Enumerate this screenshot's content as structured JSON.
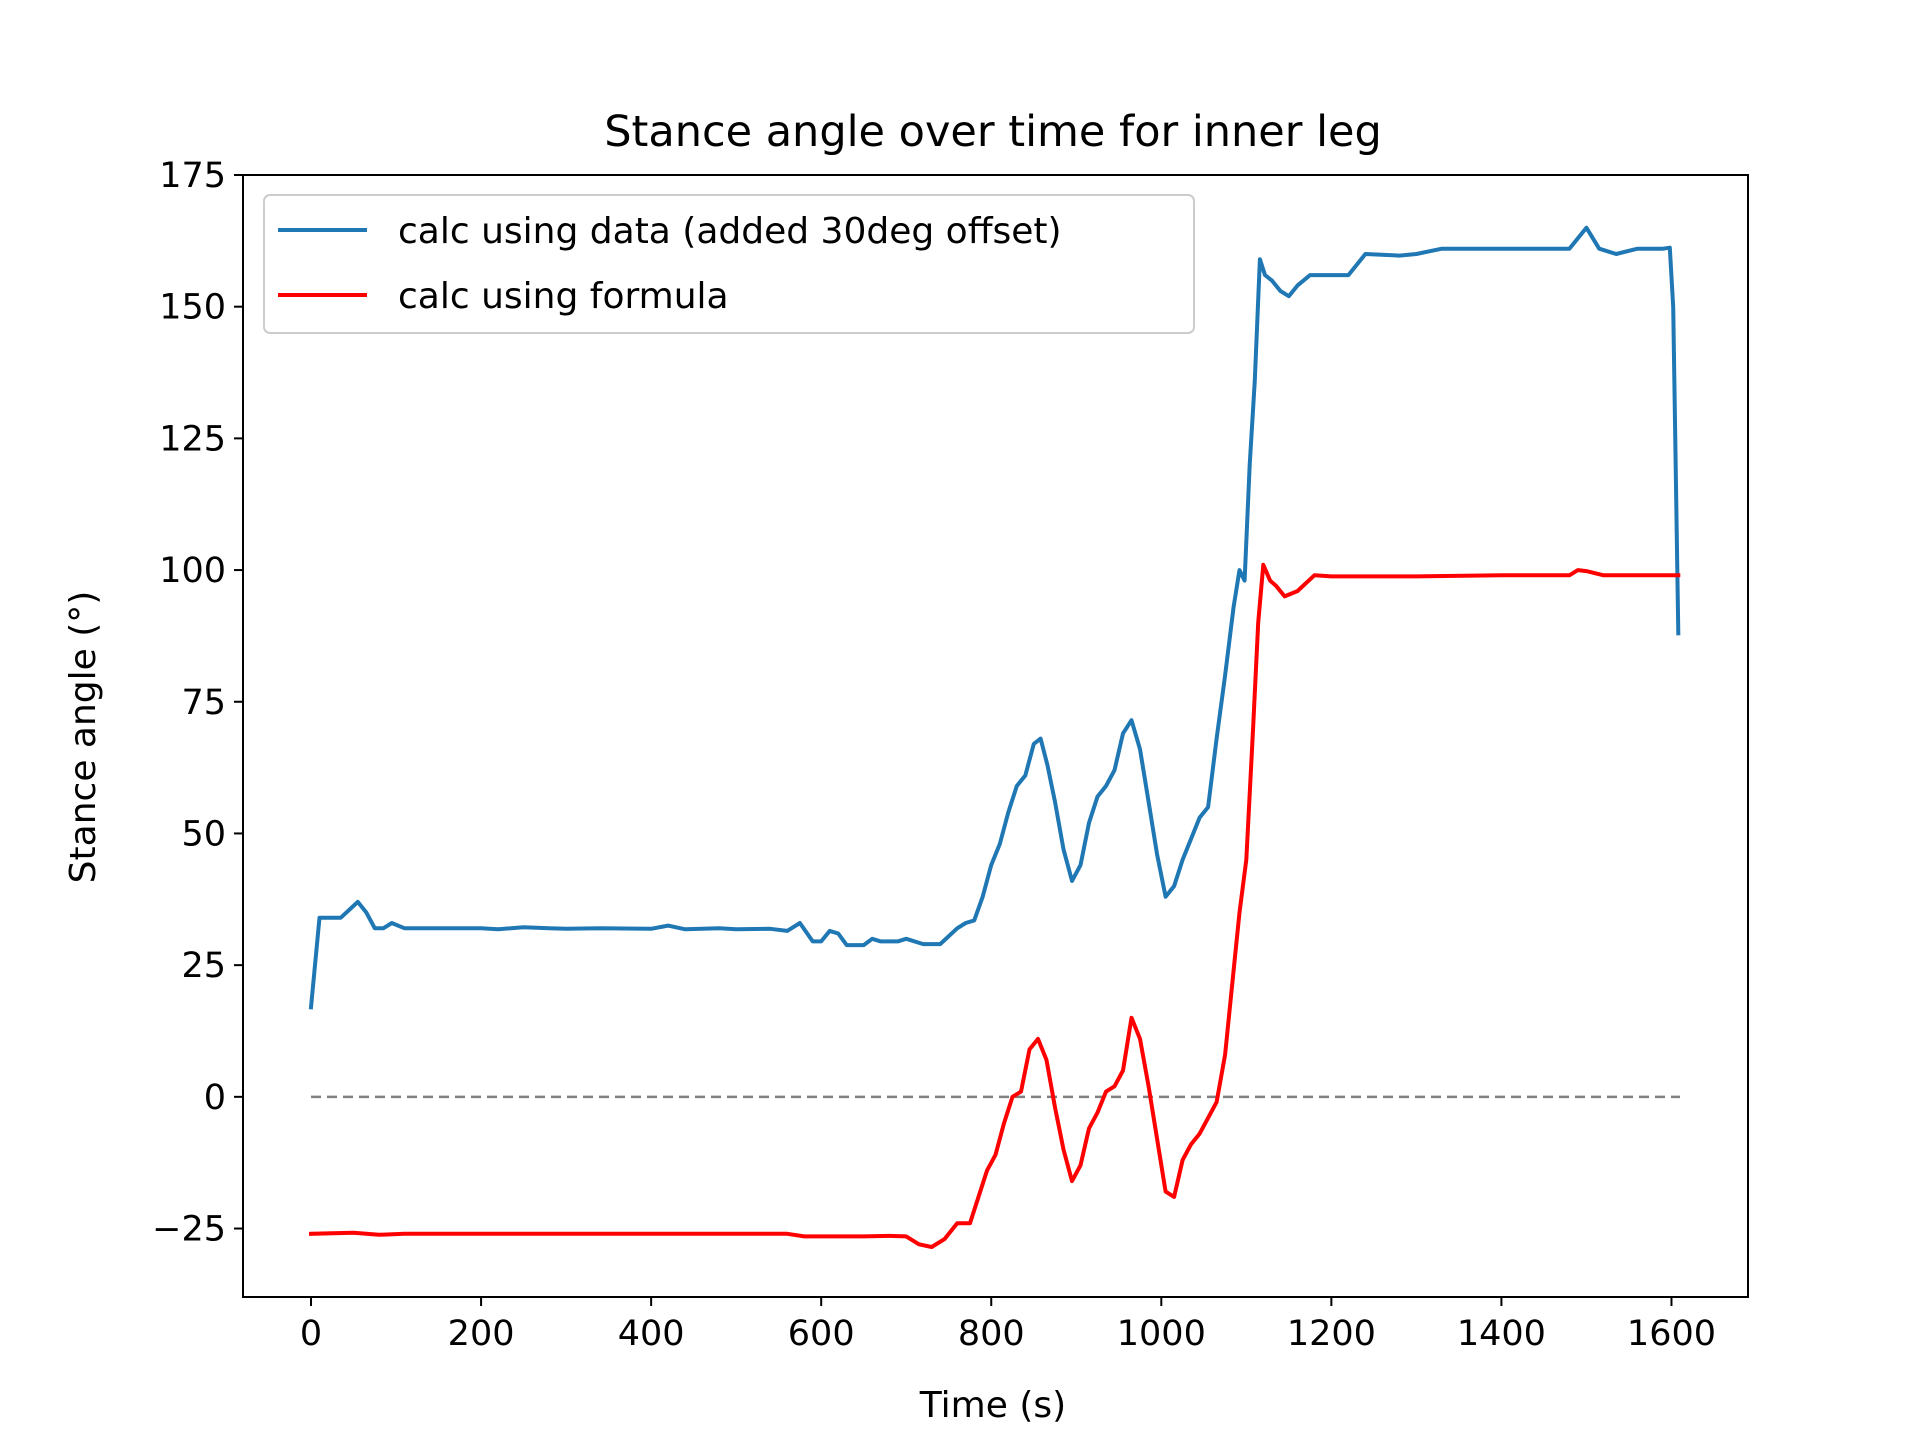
{
  "chart_data": {
    "type": "line",
    "title": "Stance angle over time for inner leg",
    "xlabel": "Time (s)",
    "ylabel": "Stance angle (°)",
    "xlim": [
      -80,
      1690
    ],
    "ylim": [
      -38,
      175
    ],
    "xticks": [
      0,
      200,
      400,
      600,
      800,
      1000,
      1200,
      1400,
      1600
    ],
    "xtick_labels": [
      "0",
      "200",
      "400",
      "600",
      "800",
      "1000",
      "1200",
      "1400",
      "1600"
    ],
    "yticks": [
      -25,
      0,
      25,
      50,
      75,
      100,
      125,
      150,
      175
    ],
    "ytick_labels": [
      "−25",
      "0",
      "25",
      "50",
      "75",
      "100",
      "125",
      "150",
      "175"
    ],
    "grid": false,
    "legend": "upper-left",
    "reference_line": {
      "y": 0,
      "x_range": [
        0,
        1610
      ],
      "style": "dashed",
      "color": "#808080"
    },
    "series": [
      {
        "name": "calc using data (added 30deg offset)",
        "color": "#1f77b4",
        "points": [
          [
            0,
            17
          ],
          [
            10,
            34
          ],
          [
            35,
            34
          ],
          [
            55,
            37
          ],
          [
            65,
            35
          ],
          [
            75,
            32
          ],
          [
            85,
            32
          ],
          [
            95,
            33
          ],
          [
            110,
            32
          ],
          [
            150,
            32
          ],
          [
            200,
            32
          ],
          [
            220,
            31.8
          ],
          [
            250,
            32.2
          ],
          [
            280,
            32
          ],
          [
            300,
            31.9
          ],
          [
            340,
            32
          ],
          [
            400,
            31.9
          ],
          [
            420,
            32.5
          ],
          [
            440,
            31.8
          ],
          [
            480,
            32
          ],
          [
            500,
            31.8
          ],
          [
            540,
            31.9
          ],
          [
            560,
            31.5
          ],
          [
            575,
            33
          ],
          [
            590,
            29.5
          ],
          [
            600,
            29.5
          ],
          [
            610,
            31.5
          ],
          [
            620,
            31
          ],
          [
            630,
            28.8
          ],
          [
            650,
            28.8
          ],
          [
            660,
            30
          ],
          [
            670,
            29.5
          ],
          [
            690,
            29.5
          ],
          [
            700,
            30
          ],
          [
            720,
            29
          ],
          [
            740,
            29
          ],
          [
            760,
            32
          ],
          [
            770,
            33
          ],
          [
            780,
            33.5
          ],
          [
            790,
            38
          ],
          [
            800,
            44
          ],
          [
            810,
            48
          ],
          [
            820,
            54
          ],
          [
            830,
            59
          ],
          [
            840,
            61
          ],
          [
            850,
            67
          ],
          [
            858,
            68
          ],
          [
            866,
            63
          ],
          [
            875,
            56
          ],
          [
            885,
            47
          ],
          [
            895,
            41
          ],
          [
            905,
            44
          ],
          [
            915,
            52
          ],
          [
            925,
            57
          ],
          [
            935,
            59
          ],
          [
            945,
            62
          ],
          [
            955,
            69
          ],
          [
            965,
            71.5
          ],
          [
            975,
            66
          ],
          [
            985,
            56
          ],
          [
            995,
            46
          ],
          [
            1005,
            38
          ],
          [
            1015,
            40
          ],
          [
            1025,
            45
          ],
          [
            1035,
            49
          ],
          [
            1045,
            53
          ],
          [
            1055,
            55
          ],
          [
            1065,
            68
          ],
          [
            1075,
            80
          ],
          [
            1085,
            93
          ],
          [
            1092,
            100
          ],
          [
            1098,
            98
          ],
          [
            1104,
            120
          ],
          [
            1110,
            136
          ],
          [
            1116,
            159
          ],
          [
            1122,
            156
          ],
          [
            1130,
            155
          ],
          [
            1140,
            153
          ],
          [
            1150,
            152
          ],
          [
            1160,
            154
          ],
          [
            1175,
            156
          ],
          [
            1200,
            156
          ],
          [
            1220,
            156
          ],
          [
            1240,
            160
          ],
          [
            1280,
            159.7
          ],
          [
            1300,
            160
          ],
          [
            1330,
            161
          ],
          [
            1400,
            161
          ],
          [
            1440,
            161
          ],
          [
            1480,
            161
          ],
          [
            1490,
            163
          ],
          [
            1500,
            165
          ],
          [
            1515,
            161
          ],
          [
            1535,
            160
          ],
          [
            1560,
            161
          ],
          [
            1590,
            161
          ],
          [
            1598,
            161.2
          ],
          [
            1602,
            150
          ],
          [
            1608,
            88
          ]
        ]
      },
      {
        "name": "calc using formula",
        "color": "#ff0000",
        "points": [
          [
            0,
            -26
          ],
          [
            50,
            -25.8
          ],
          [
            80,
            -26.2
          ],
          [
            110,
            -26
          ],
          [
            200,
            -26
          ],
          [
            300,
            -26
          ],
          [
            400,
            -26
          ],
          [
            500,
            -26
          ],
          [
            560,
            -26
          ],
          [
            580,
            -26.5
          ],
          [
            600,
            -26.5
          ],
          [
            650,
            -26.5
          ],
          [
            680,
            -26.4
          ],
          [
            700,
            -26.5
          ],
          [
            715,
            -28
          ],
          [
            730,
            -28.5
          ],
          [
            745,
            -27
          ],
          [
            760,
            -24
          ],
          [
            775,
            -24
          ],
          [
            785,
            -19
          ],
          [
            795,
            -14
          ],
          [
            805,
            -11
          ],
          [
            815,
            -5
          ],
          [
            825,
            0
          ],
          [
            835,
            1
          ],
          [
            845,
            9
          ],
          [
            855,
            11
          ],
          [
            865,
            7
          ],
          [
            875,
            -2
          ],
          [
            885,
            -10
          ],
          [
            895,
            -16
          ],
          [
            905,
            -13
          ],
          [
            915,
            -6
          ],
          [
            925,
            -3
          ],
          [
            935,
            1
          ],
          [
            945,
            2
          ],
          [
            955,
            5
          ],
          [
            965,
            15
          ],
          [
            975,
            11
          ],
          [
            985,
            2
          ],
          [
            995,
            -8
          ],
          [
            1005,
            -18
          ],
          [
            1015,
            -19
          ],
          [
            1025,
            -12
          ],
          [
            1035,
            -9
          ],
          [
            1045,
            -7
          ],
          [
            1055,
            -4
          ],
          [
            1065,
            -1
          ],
          [
            1075,
            8
          ],
          [
            1085,
            24
          ],
          [
            1092,
            35
          ],
          [
            1100,
            45
          ],
          [
            1108,
            70
          ],
          [
            1114,
            90
          ],
          [
            1120,
            101
          ],
          [
            1128,
            98
          ],
          [
            1135,
            97
          ],
          [
            1145,
            95
          ],
          [
            1160,
            96
          ],
          [
            1180,
            99
          ],
          [
            1200,
            98.8
          ],
          [
            1300,
            98.8
          ],
          [
            1400,
            99
          ],
          [
            1480,
            99
          ],
          [
            1490,
            100
          ],
          [
            1500,
            99.8
          ],
          [
            1520,
            99
          ],
          [
            1560,
            99
          ],
          [
            1608,
            99
          ]
        ]
      }
    ]
  }
}
